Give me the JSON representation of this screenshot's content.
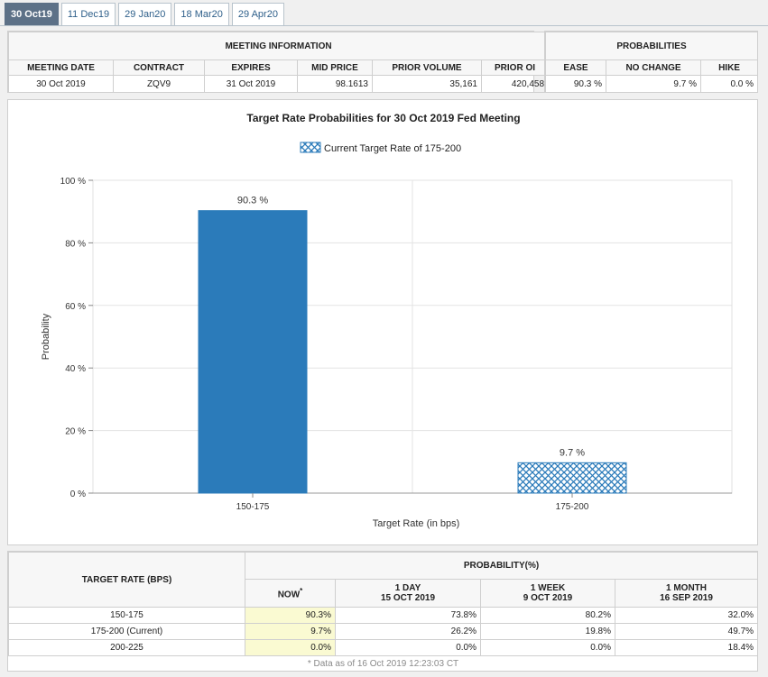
{
  "tabs": [
    {
      "label": "30 Oct19",
      "active": true
    },
    {
      "label": "11 Dec19",
      "active": false
    },
    {
      "label": "29 Jan20",
      "active": false
    },
    {
      "label": "18 Mar20",
      "active": false
    },
    {
      "label": "29 Apr20",
      "active": false
    }
  ],
  "meeting_info": {
    "title": "MEETING INFORMATION",
    "headers": [
      "MEETING DATE",
      "CONTRACT",
      "EXPIRES",
      "MID PRICE",
      "PRIOR VOLUME",
      "PRIOR OI"
    ],
    "values": [
      "30 Oct 2019",
      "ZQV9",
      "31 Oct 2019",
      "98.1613",
      "35,161",
      "420,458"
    ]
  },
  "probabilities": {
    "title": "PROBABILITIES",
    "headers": [
      "EASE",
      "NO CHANGE",
      "HIKE"
    ],
    "values": [
      "90.3 %",
      "9.7 %",
      "0.0 %"
    ]
  },
  "chart_data": {
    "type": "bar",
    "title": "Target Rate Probabilities for 30 Oct 2019 Fed Meeting",
    "legend": "Current Target Rate of 175-200",
    "xlabel": "Target Rate (in bps)",
    "ylabel": "Probability",
    "categories": [
      "150-175",
      "175-200"
    ],
    "values": [
      90.3,
      9.7
    ],
    "value_labels": [
      "90.3 %",
      "9.7 %"
    ],
    "current_category": "175-200",
    "ylim": [
      0,
      100
    ],
    "yticks": [
      0,
      20,
      40,
      60,
      80,
      100
    ],
    "ytick_labels": [
      "0 %",
      "20 %",
      "40 %",
      "60 %",
      "80 %",
      "100 %"
    ],
    "bar_color": "#2b7bba",
    "current_pattern_color": "#2b7bba",
    "grid": true,
    "legend_position": "top-center",
    "watermark_icon": "cme-fedwatch-logo-icon"
  },
  "history": {
    "target_rate_header": "TARGET RATE (BPS)",
    "probability_header": "PROBABILITY(%)",
    "columns": [
      {
        "line1": "NOW",
        "sup": "*",
        "line2": ""
      },
      {
        "line1": "1 DAY",
        "line2": "15 OCT 2019"
      },
      {
        "line1": "1 WEEK",
        "line2": "9 OCT 2019"
      },
      {
        "line1": "1 MONTH",
        "line2": "16 SEP 2019"
      }
    ],
    "rows": [
      {
        "rate": "150-175",
        "values": [
          "90.3%",
          "73.8%",
          "80.2%",
          "32.0%"
        ]
      },
      {
        "rate": "175-200 (Current)",
        "values": [
          "9.7%",
          "26.2%",
          "19.8%",
          "49.7%"
        ]
      },
      {
        "rate": "200-225",
        "values": [
          "0.0%",
          "0.0%",
          "0.0%",
          "18.4%"
        ]
      }
    ],
    "footnote": "* Data as of 16 Oct 2019 12:23:03 CT"
  }
}
